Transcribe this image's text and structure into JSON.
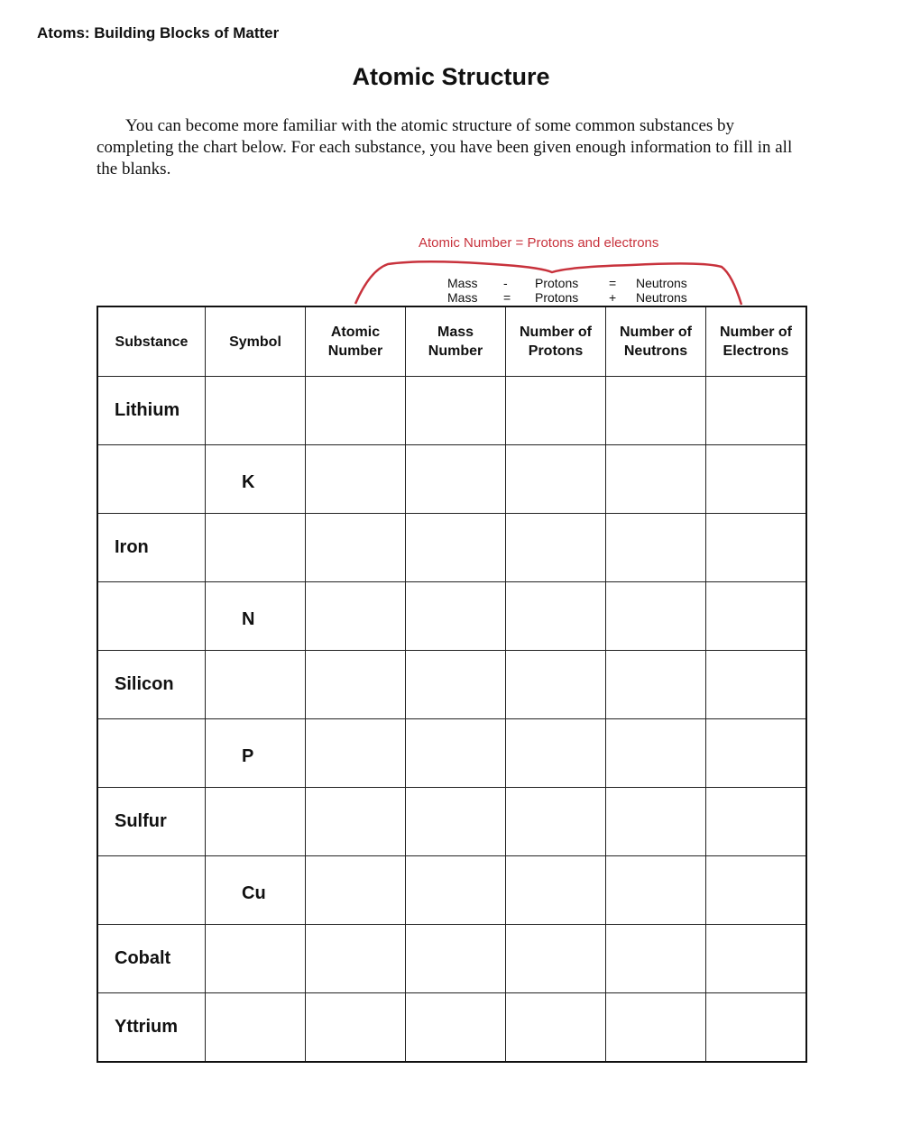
{
  "header": "Atoms: Building Blocks of Matter",
  "title": "Atomic Structure",
  "intro": "You can become more familiar with the atomic structure of some common substances by completing the chart below. For each substance, you have been given enough information to fill in all the blanks.",
  "annotation": {
    "note": "Atomic Number = Protons and electrons",
    "color": "#c8323c",
    "eq1": [
      "Mass",
      "-",
      "Protons",
      "=",
      "Neutrons"
    ],
    "eq2": [
      "Mass",
      "=",
      "Protons",
      "+",
      "Neutrons"
    ]
  },
  "table": {
    "columns": [
      "Substance",
      "Symbol",
      "Atomic Number",
      "Mass Number",
      "Number of Protons",
      "Number of Neutrons",
      "Number of Electrons"
    ],
    "rows": [
      {
        "substance": "Lithium",
        "symbol": ""
      },
      {
        "substance": "",
        "symbol": "K"
      },
      {
        "substance": "Iron",
        "symbol": ""
      },
      {
        "substance": "",
        "symbol": "N"
      },
      {
        "substance": "Silicon",
        "symbol": ""
      },
      {
        "substance": "",
        "symbol": "P"
      },
      {
        "substance": "Sulfur",
        "symbol": ""
      },
      {
        "substance": "",
        "symbol": "Cu"
      },
      {
        "substance": "Cobalt",
        "symbol": ""
      },
      {
        "substance": "Yttrium",
        "symbol": ""
      }
    ]
  }
}
